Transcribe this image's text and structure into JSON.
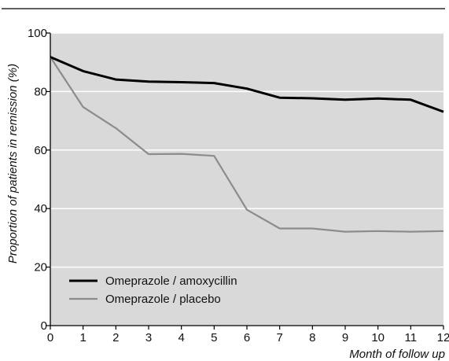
{
  "chart_data": {
    "type": "line",
    "xlabel": "Month of follow up",
    "ylabel": "Proportion of patients in remission (%)",
    "xlim": [
      0,
      12
    ],
    "ylim": [
      0,
      100
    ],
    "x_ticks": [
      0,
      1,
      2,
      3,
      4,
      5,
      6,
      7,
      8,
      9,
      10,
      11,
      12
    ],
    "y_ticks": [
      0,
      20,
      40,
      60,
      80,
      100
    ],
    "grid": "horizontal",
    "background": "#d9d9d9",
    "legend_position": "bottom-left",
    "series": [
      {
        "name": "Omeprazole / amoxycillin",
        "color": "#000000",
        "x": [
          0,
          1,
          2,
          3,
          4,
          5,
          6,
          7,
          8,
          9,
          10,
          11,
          12
        ],
        "y": [
          91.8,
          87,
          84.1,
          83.4,
          83.2,
          82.9,
          81,
          77.9,
          77.7,
          77.2,
          77.6,
          77.2,
          73.1
        ]
      },
      {
        "name": "Omeprazole / placebo",
        "color": "#8c8c8c",
        "x": [
          0,
          1,
          2,
          3,
          4,
          5,
          6,
          7,
          8,
          9,
          10,
          11,
          12
        ],
        "y": [
          91.8,
          74.7,
          67.5,
          58.6,
          58.7,
          58,
          39.6,
          33.2,
          33.2,
          32.1,
          32.3,
          32.1,
          32.3
        ]
      }
    ]
  }
}
